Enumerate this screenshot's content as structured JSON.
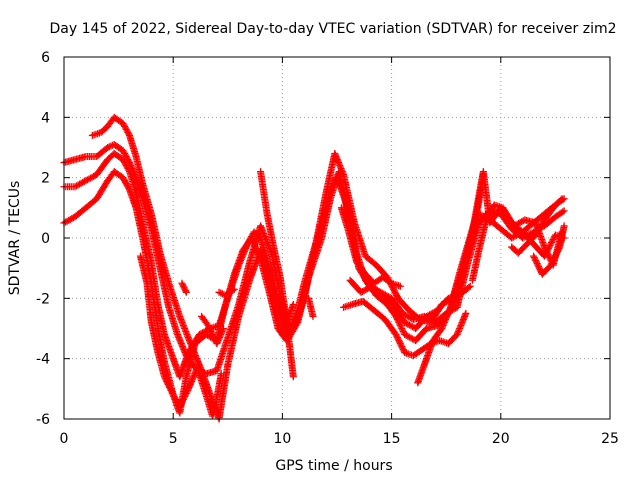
{
  "chart_data": {
    "type": "scatter",
    "title": "Day 145 of 2022, Sidereal Day-to-day VTEC variation (SDTVAR) for receiver zim2",
    "xlabel": "GPS time / hours",
    "ylabel": "SDTVAR / TECUs",
    "xlim": [
      0,
      25
    ],
    "ylim": [
      -6,
      6
    ],
    "xticks": [
      0,
      5,
      10,
      15,
      20,
      25
    ],
    "yticks": [
      -6,
      -4,
      -2,
      0,
      2,
      4,
      6
    ],
    "grid": true,
    "legend": "none",
    "marker": "+",
    "color": "#ff0000",
    "series": [
      {
        "points": [
          [
            0.0,
            2.5
          ],
          [
            0.5,
            2.6
          ],
          [
            1.0,
            2.7
          ],
          [
            1.5,
            2.7
          ],
          [
            2.0,
            3.0
          ],
          [
            2.3,
            3.1
          ],
          [
            2.7,
            2.9
          ],
          [
            3.0,
            2.5
          ],
          [
            3.3,
            2.0
          ],
          [
            3.6,
            1.3
          ],
          [
            4.0,
            0.3
          ],
          [
            4.4,
            -1.0
          ],
          [
            4.8,
            -2.3
          ],
          [
            5.2,
            -3.2
          ],
          [
            5.6,
            -3.9
          ],
          [
            6.0,
            -4.3
          ],
          [
            6.5,
            -4.5
          ],
          [
            7.0,
            -4.4
          ],
          [
            7.5,
            -3.3
          ],
          [
            8.0,
            -2.2
          ],
          [
            8.5,
            -0.8
          ],
          [
            9.0,
            0.4
          ],
          [
            9.5,
            -0.5
          ],
          [
            10.0,
            -2.2
          ],
          [
            10.3,
            -3.1
          ],
          [
            10.7,
            -2.4
          ],
          [
            11.0,
            -1.5
          ],
          [
            11.4,
            -0.5
          ],
          [
            11.8,
            0.5
          ],
          [
            12.2,
            1.6
          ],
          [
            12.6,
            2.2
          ],
          [
            13.0,
            0.8
          ],
          [
            13.5,
            -1.0
          ],
          [
            14.0,
            -1.6
          ],
          [
            14.5,
            -1.8
          ],
          [
            15.0,
            -2.0
          ],
          [
            15.5,
            -2.5
          ],
          [
            16.0,
            -2.7
          ],
          [
            16.5,
            -2.6
          ],
          [
            17.0,
            -2.8
          ],
          [
            17.5,
            -2.5
          ],
          [
            18.0,
            -2.3
          ],
          [
            18.5,
            -0.8
          ],
          [
            19.0,
            0.5
          ],
          [
            19.5,
            0.9
          ],
          [
            20.0,
            0.8
          ],
          [
            20.5,
            0.3
          ],
          [
            21.0,
            0.0
          ],
          [
            21.5,
            0.2
          ],
          [
            22.0,
            0.4
          ],
          [
            22.5,
            0.7
          ],
          [
            22.9,
            0.9
          ]
        ]
      },
      {
        "points": [
          [
            0.0,
            1.7
          ],
          [
            0.5,
            1.7
          ],
          [
            1.0,
            1.9
          ],
          [
            1.5,
            2.1
          ],
          [
            2.0,
            2.6
          ],
          [
            2.3,
            2.8
          ],
          [
            2.7,
            2.6
          ],
          [
            3.0,
            2.2
          ],
          [
            3.3,
            1.5
          ],
          [
            3.6,
            0.5
          ],
          [
            4.0,
            -0.8
          ],
          [
            4.3,
            -2.2
          ],
          [
            4.6,
            -3.2
          ],
          [
            5.0,
            -4.0
          ],
          [
            5.3,
            -4.6
          ],
          [
            5.7,
            -3.8
          ],
          [
            6.2,
            -3.2
          ],
          [
            6.7,
            -3.0
          ],
          [
            7.1,
            -2.9
          ],
          [
            7.5,
            -2.0
          ],
          [
            8.0,
            -0.9
          ],
          [
            8.4,
            -0.2
          ],
          [
            8.7,
            0.2
          ],
          [
            9.0,
            0.0
          ],
          [
            9.5,
            -1.2
          ],
          [
            10.0,
            -2.6
          ],
          [
            10.3,
            -3.3
          ],
          [
            10.7,
            -2.8
          ],
          [
            11.2,
            -1.3
          ],
          [
            11.8,
            0.0
          ],
          [
            12.2,
            1.3
          ],
          [
            12.5,
            2.0
          ],
          [
            12.9,
            1.2
          ],
          [
            13.4,
            -0.5
          ],
          [
            13.8,
            -1.4
          ],
          [
            14.3,
            -1.9
          ],
          [
            14.8,
            -2.2
          ],
          [
            15.2,
            -2.6
          ],
          [
            15.6,
            -3.2
          ],
          [
            16.1,
            -3.4
          ],
          [
            16.6,
            -3.0
          ],
          [
            17.1,
            -2.9
          ],
          [
            17.6,
            -2.5
          ],
          [
            18.0,
            -1.8
          ],
          [
            18.5,
            -0.5
          ],
          [
            19.0,
            0.8
          ],
          [
            19.5,
            0.6
          ],
          [
            20.0,
            0.3
          ],
          [
            20.5,
            0.0
          ],
          [
            21.0,
            0.2
          ],
          [
            21.5,
            0.5
          ],
          [
            22.0,
            0.8
          ],
          [
            22.5,
            1.1
          ],
          [
            22.9,
            1.3
          ]
        ]
      },
      {
        "points": [
          [
            0.0,
            0.5
          ],
          [
            0.5,
            0.7
          ],
          [
            1.0,
            1.0
          ],
          [
            1.5,
            1.3
          ],
          [
            2.0,
            1.9
          ],
          [
            2.3,
            2.2
          ],
          [
            2.7,
            2.0
          ],
          [
            3.0,
            1.6
          ],
          [
            3.3,
            1.0
          ],
          [
            3.6,
            0.0
          ],
          [
            4.0,
            -1.5
          ],
          [
            4.3,
            -3.0
          ],
          [
            4.6,
            -4.1
          ],
          [
            5.0,
            -5.2
          ],
          [
            5.3,
            -5.8
          ],
          [
            5.6,
            -4.6
          ],
          [
            6.0,
            -3.5
          ],
          [
            6.5,
            -3.2
          ],
          [
            7.0,
            -3.4
          ],
          [
            7.4,
            -2.2
          ],
          [
            7.8,
            -1.2
          ],
          [
            8.2,
            -0.4
          ],
          [
            8.6,
            0.0
          ],
          [
            9.0,
            -0.7
          ],
          [
            9.4,
            -1.8
          ],
          [
            9.8,
            -3.0
          ],
          [
            10.2,
            -3.4
          ],
          [
            10.6,
            -2.9
          ],
          [
            11.0,
            -2.0
          ],
          [
            11.5,
            -0.3
          ],
          [
            12.0,
            1.5
          ],
          [
            12.4,
            2.8
          ],
          [
            12.8,
            2.1
          ],
          [
            13.3,
            0.5
          ],
          [
            13.8,
            -0.6
          ],
          [
            14.3,
            -0.9
          ],
          [
            14.8,
            -1.3
          ],
          [
            15.3,
            -2.0
          ],
          [
            15.8,
            -2.4
          ],
          [
            16.3,
            -2.7
          ],
          [
            16.8,
            -2.8
          ],
          [
            17.3,
            -2.2
          ],
          [
            17.8,
            -2.0
          ],
          [
            18.2,
            -1.1
          ],
          [
            18.7,
            0.2
          ],
          [
            19.2,
            2.2
          ],
          [
            19.5,
            0.5
          ],
          [
            20.0,
            1.0
          ],
          [
            20.5,
            0.5
          ],
          [
            21.0,
            0.2
          ],
          [
            21.5,
            -0.2
          ],
          [
            22.0,
            -0.6
          ],
          [
            22.5,
            0.1
          ],
          [
            22.9,
            0.0
          ]
        ]
      },
      {
        "points": [
          [
            1.3,
            3.4
          ],
          [
            1.7,
            3.5
          ],
          [
            2.0,
            3.7
          ],
          [
            2.3,
            4.0
          ],
          [
            2.7,
            3.8
          ],
          [
            3.0,
            3.4
          ],
          [
            3.3,
            2.7
          ],
          [
            3.6,
            1.8
          ],
          [
            4.0,
            0.8
          ],
          [
            4.4,
            -0.5
          ],
          [
            4.8,
            -1.5
          ],
          [
            5.3,
            -2.6
          ],
          [
            5.8,
            -3.5
          ],
          [
            6.3,
            -4.4
          ],
          [
            6.8,
            -5.4
          ],
          [
            7.1,
            -6.0
          ],
          [
            7.5,
            -4.2
          ],
          [
            8.0,
            -2.6
          ],
          [
            8.5,
            -1.4
          ],
          [
            9.0,
            -0.4
          ],
          [
            9.5,
            -1.8
          ],
          [
            10.0,
            -3.2
          ],
          [
            10.5,
            -2.2
          ]
        ]
      },
      {
        "points": [
          [
            3.5,
            -0.6
          ],
          [
            3.8,
            -1.5
          ],
          [
            4.0,
            -2.8
          ],
          [
            4.3,
            -3.8
          ],
          [
            4.6,
            -4.6
          ],
          [
            5.0,
            -5.2
          ],
          [
            5.3,
            -5.6
          ],
          [
            5.7,
            -5.0
          ],
          [
            6.1,
            -4.3
          ],
          [
            6.5,
            -5.2
          ],
          [
            6.8,
            -5.9
          ],
          [
            7.0,
            -5.3
          ],
          [
            7.2,
            -4.5
          ]
        ]
      },
      {
        "points": [
          [
            5.4,
            -1.5
          ],
          [
            5.6,
            -1.8
          ]
        ]
      },
      {
        "points": [
          [
            6.3,
            -2.6
          ],
          [
            6.6,
            -2.9
          ],
          [
            7.0,
            -3.5
          ],
          [
            7.3,
            -3.0
          ]
        ]
      },
      {
        "points": [
          [
            7.1,
            -1.8
          ],
          [
            7.4,
            -1.9
          ],
          [
            7.8,
            -1.7
          ]
        ]
      },
      {
        "points": [
          [
            9.0,
            2.2
          ],
          [
            9.3,
            0.8
          ],
          [
            9.6,
            -0.3
          ],
          [
            9.9,
            -1.3
          ],
          [
            10.2,
            -2.8
          ],
          [
            10.5,
            -4.6
          ]
        ]
      },
      {
        "points": [
          [
            11.2,
            -2.0
          ],
          [
            11.4,
            -2.6
          ]
        ]
      },
      {
        "points": [
          [
            12.7,
            1.0
          ],
          [
            13.0,
            0.3
          ],
          [
            13.4,
            -0.8
          ],
          [
            13.8,
            -1.2
          ],
          [
            14.2,
            -1.5
          ],
          [
            14.6,
            -1.3
          ],
          [
            15.0,
            -1.5
          ],
          [
            15.4,
            -1.6
          ]
        ]
      },
      {
        "points": [
          [
            12.8,
            -2.3
          ],
          [
            13.2,
            -2.2
          ],
          [
            13.7,
            -2.1
          ],
          [
            14.2,
            -2.4
          ],
          [
            14.7,
            -2.7
          ],
          [
            15.2,
            -3.2
          ],
          [
            15.6,
            -3.8
          ],
          [
            16.0,
            -3.9
          ],
          [
            16.4,
            -3.7
          ],
          [
            16.8,
            -3.5
          ],
          [
            17.2,
            -3.4
          ],
          [
            17.6,
            -3.5
          ],
          [
            18.0,
            -3.2
          ],
          [
            18.4,
            -2.5
          ]
        ]
      },
      {
        "points": [
          [
            13.1,
            -1.4
          ],
          [
            13.6,
            -1.8
          ],
          [
            14.1,
            -1.6
          ],
          [
            14.6,
            -1.9
          ],
          [
            15.1,
            -2.3
          ],
          [
            15.6,
            -2.8
          ],
          [
            16.1,
            -3.0
          ],
          [
            16.6,
            -2.6
          ],
          [
            17.1,
            -2.4
          ],
          [
            17.6,
            -2.0
          ],
          [
            18.1,
            -1.9
          ],
          [
            18.6,
            -1.6
          ]
        ]
      },
      {
        "points": [
          [
            16.2,
            -4.8
          ],
          [
            16.5,
            -4.2
          ],
          [
            16.9,
            -3.4
          ],
          [
            17.3,
            -3.0
          ],
          [
            17.7,
            -2.3
          ],
          [
            18.1,
            -1.2
          ],
          [
            18.5,
            -0.2
          ],
          [
            18.9,
            0.8
          ],
          [
            19.2,
            2.1
          ]
        ]
      },
      {
        "points": [
          [
            18.7,
            -1.4
          ],
          [
            19.0,
            -0.4
          ],
          [
            19.3,
            0.5
          ],
          [
            19.7,
            1.1
          ],
          [
            20.1,
            1.0
          ],
          [
            20.6,
            0.4
          ],
          [
            21.1,
            0.6
          ],
          [
            21.6,
            0.5
          ],
          [
            22.0,
            -0.3
          ],
          [
            22.4,
            -0.9
          ],
          [
            22.8,
            0.2
          ]
        ]
      },
      {
        "points": [
          [
            20.5,
            -0.3
          ],
          [
            20.8,
            -0.5
          ],
          [
            21.2,
            -0.2
          ],
          [
            21.6,
            0.1
          ],
          [
            22.0,
            0.6
          ],
          [
            22.4,
            1.0
          ],
          [
            22.8,
            1.3
          ]
        ]
      },
      {
        "points": [
          [
            21.5,
            -0.6
          ],
          [
            21.9,
            -1.2
          ],
          [
            22.3,
            -0.9
          ],
          [
            22.7,
            -0.3
          ],
          [
            22.9,
            0.4
          ]
        ]
      }
    ]
  }
}
